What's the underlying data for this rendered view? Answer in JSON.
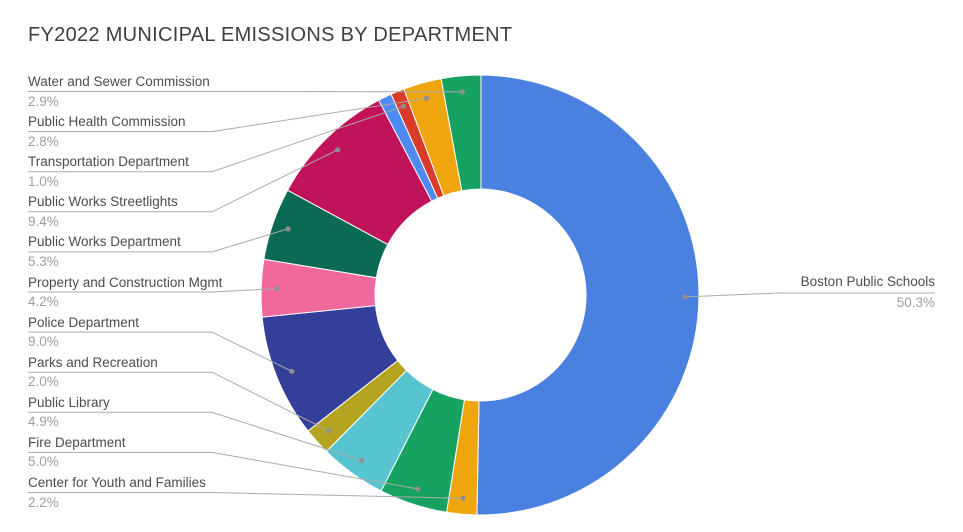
{
  "header": {
    "title": "FY2022 MUNICIPAL EMISSIONS BY DEPARTMENT"
  },
  "chart_data": {
    "type": "pie",
    "subtype": "donut",
    "title": "FY2022 MUNICIPAL EMISSIONS BY DEPARTMENT",
    "value_unit": "%",
    "order": "clockwise-from-12-oclock",
    "donut_hole_ratio": 0.48,
    "legend_position": "outside-leader-labels",
    "slices": [
      {
        "label": "Boston Public Schools",
        "value": 50.3,
        "color": "#4a80e0"
      },
      {
        "label": "Center for Youth and Families",
        "value": 2.2,
        "color": "#efa50e"
      },
      {
        "label": "Fire Department",
        "value": 5.0,
        "color": "#16a361"
      },
      {
        "label": "Public Library",
        "value": 4.9,
        "color": "#56c5d0"
      },
      {
        "label": "Parks and Recreation",
        "value": 2.0,
        "color": "#b5a41f"
      },
      {
        "label": "Police Department",
        "value": 9.0,
        "color": "#343f9a"
      },
      {
        "label": "Property and Construction Mgmt",
        "value": 4.2,
        "color": "#f0689c"
      },
      {
        "label": "Public Works Department",
        "value": 5.3,
        "color": "#0b6a53"
      },
      {
        "label": "Public Works Streetlights",
        "value": 9.4,
        "color": "#c0135a"
      },
      {
        "label": "",
        "value": 1.0,
        "color": "#4f8af0"
      },
      {
        "label": "Transportation Department",
        "value": 1.0,
        "color": "#d93b28"
      },
      {
        "label": "Public Health Commission",
        "value": 2.8,
        "color": "#efa50e"
      },
      {
        "label": "Water and Sewer Commission",
        "value": 2.9,
        "color": "#16a361"
      }
    ],
    "label_layout": {
      "left_top_to_bottom": [
        "Water and Sewer Commission",
        "Public Health Commission",
        "Transportation Department",
        "Public Works Streetlights",
        "Public Works Department",
        "Property and Construction Mgmt",
        "Police Department",
        "Parks and Recreation",
        "Public Library",
        "Fire Department",
        "Center for Youth and Families"
      ],
      "right": "Boston Public Schools"
    }
  }
}
